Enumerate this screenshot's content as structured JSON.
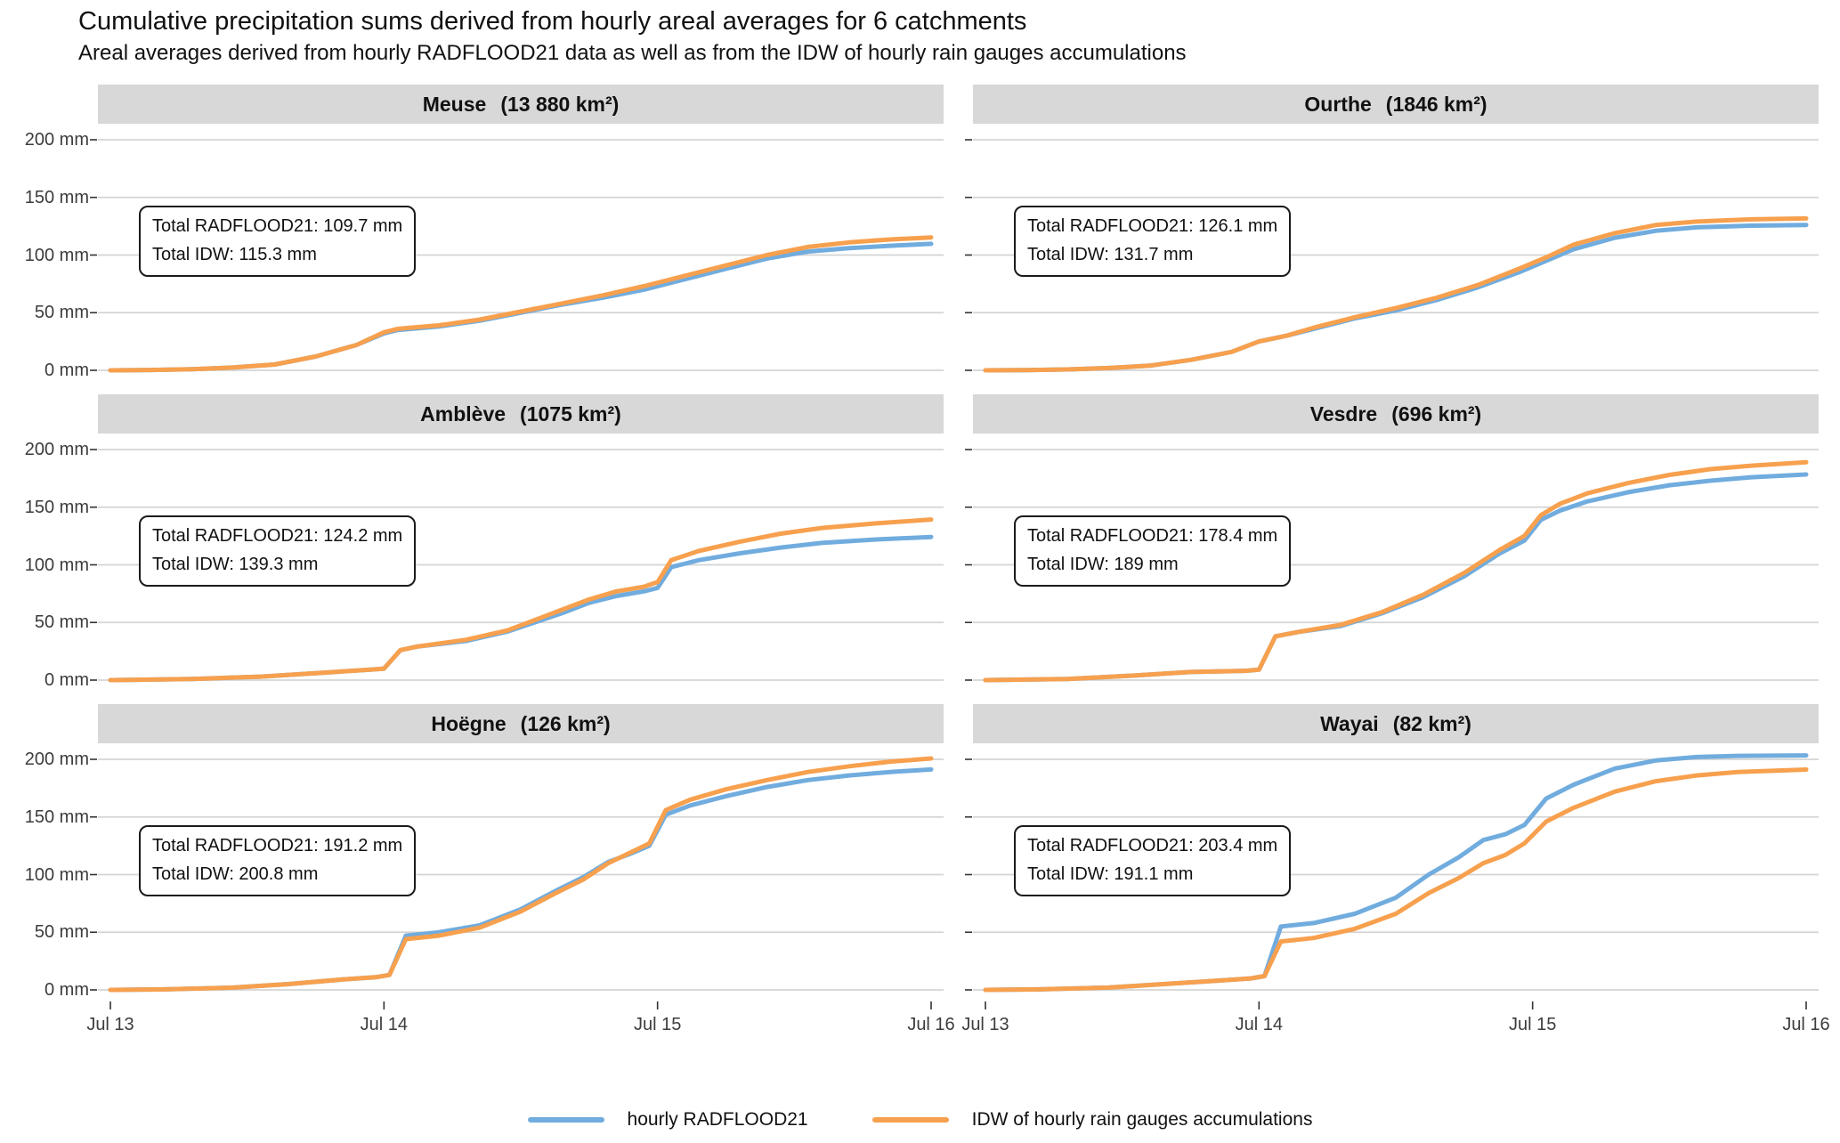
{
  "header": {
    "title": "Cumulative precipitation sums derived from hourly areal averages for 6 catchments",
    "subtitle": "Areal averages derived from hourly RADFLOOD21 data as well as from the IDW of hourly rain gauges accumulations"
  },
  "legend": {
    "radflood_label": "hourly RADFLOOD21",
    "idw_label": "IDW of hourly rain gauges accumulations"
  },
  "chart_data": {
    "type": "line",
    "layout": "facet-grid 3 rows x 2 cols, shared axes, horizontal major gridlines only, legend bottom",
    "x_axis": {
      "tick_labels": [
        "Jul 13",
        "Jul 14",
        "Jul 15",
        "Jul 16"
      ],
      "tick_positions_days": [
        0,
        1,
        2,
        3
      ],
      "range_days": [
        0,
        3
      ]
    },
    "y_axis": {
      "tick_values": [
        0,
        50,
        100,
        150,
        200
      ],
      "tick_labels": [
        "0 mm",
        "50 mm",
        "100 mm",
        "150 mm",
        "200 mm"
      ],
      "ylim": [
        0,
        200
      ]
    },
    "colors": {
      "radflood": "#71ACDE",
      "idw": "#F7A04E",
      "gridline": "#d4d4d4",
      "tick": "#333333",
      "strip_bg": "#d8d8d8"
    },
    "series_names": [
      "hourly RADFLOOD21",
      "IDW of hourly rain gauges accumulations"
    ],
    "panels": [
      {
        "name": "Meuse",
        "area_label": "(13 880 km²)",
        "total_radflood21_mm": 109.7,
        "total_idw_mm": 115.3,
        "annotation_line1": "Total RADFLOOD21: 109.7 mm",
        "annotation_line2": "Total IDW: 115.3 mm",
        "x": [
          0,
          0.15,
          0.3,
          0.45,
          0.6,
          0.75,
          0.9,
          1.0,
          1.05,
          1.2,
          1.35,
          1.5,
          1.65,
          1.8,
          1.95,
          2.1,
          2.25,
          2.4,
          2.55,
          2.7,
          2.85,
          3.0
        ],
        "radflood": [
          0,
          0.3,
          1,
          2.5,
          5,
          12,
          22,
          32,
          35,
          38,
          43,
          50,
          57,
          63,
          70,
          79,
          88,
          97,
          103,
          106,
          108,
          109.7
        ],
        "idw": [
          0,
          0.3,
          1,
          2.5,
          5,
          12,
          22,
          33,
          36,
          39,
          44,
          51,
          58,
          65,
          73,
          82,
          91,
          100,
          107,
          111,
          113.5,
          115.3
        ]
      },
      {
        "name": "Ourthe",
        "area_label": "(1846 km²)",
        "total_radflood21_mm": 126.1,
        "total_idw_mm": 131.7,
        "annotation_line1": "Total RADFLOOD21: 126.1 mm",
        "annotation_line2": "Total IDW: 131.7 mm",
        "x": [
          0,
          0.15,
          0.3,
          0.45,
          0.6,
          0.75,
          0.9,
          1.0,
          1.1,
          1.2,
          1.35,
          1.5,
          1.65,
          1.8,
          1.95,
          2.05,
          2.15,
          2.3,
          2.45,
          2.6,
          2.8,
          3.0
        ],
        "radflood": [
          0,
          0.2,
          0.8,
          2,
          4,
          9,
          16,
          25,
          30,
          36,
          45,
          52,
          61,
          72,
          85,
          95,
          105,
          115,
          121,
          124,
          125.5,
          126.1
        ],
        "idw": [
          0,
          0.2,
          0.8,
          2,
          4,
          9,
          16,
          25,
          30,
          37,
          46,
          54,
          63,
          74,
          88,
          98,
          109,
          119,
          126,
          129,
          131,
          131.7
        ]
      },
      {
        "name": "Amblève",
        "area_label": "(1075 km²)",
        "total_radflood21_mm": 124.2,
        "total_idw_mm": 139.3,
        "annotation_line1": "Total RADFLOOD21: 124.2 mm",
        "annotation_line2": "Total IDW: 139.3 mm",
        "x": [
          0,
          0.3,
          0.55,
          0.75,
          0.95,
          1.0,
          1.06,
          1.12,
          1.3,
          1.45,
          1.55,
          1.65,
          1.75,
          1.85,
          1.95,
          2.0,
          2.05,
          2.15,
          2.3,
          2.45,
          2.6,
          2.8,
          3.0
        ],
        "radflood": [
          0,
          1,
          3,
          6,
          9,
          10,
          26,
          29,
          34,
          42,
          50,
          58,
          67,
          73,
          77,
          80,
          98,
          104,
          110,
          115,
          119,
          122,
          124.2
        ],
        "idw": [
          0,
          1,
          3,
          6,
          9,
          10,
          26,
          29,
          35,
          43,
          52,
          61,
          70,
          77,
          81,
          85,
          104,
          112,
          120,
          127,
          132,
          136,
          139.3
        ]
      },
      {
        "name": "Vesdre",
        "area_label": "(696 km²)",
        "total_radflood21_mm": 178.4,
        "total_idw_mm": 189,
        "annotation_line1": "Total RADFLOOD21: 178.4 mm",
        "annotation_line2": "Total IDW: 189 mm",
        "x": [
          0,
          0.3,
          0.55,
          0.75,
          0.95,
          1.0,
          1.06,
          1.15,
          1.3,
          1.45,
          1.6,
          1.75,
          1.88,
          1.97,
          2.03,
          2.1,
          2.2,
          2.35,
          2.5,
          2.65,
          2.8,
          3.0
        ],
        "radflood": [
          0,
          1,
          4,
          7,
          8,
          9,
          38,
          42,
          47,
          58,
          72,
          90,
          110,
          121,
          139,
          147,
          155,
          163,
          169,
          173,
          176,
          178.4
        ],
        "idw": [
          0,
          1,
          4,
          7,
          8,
          9,
          38,
          42,
          48,
          59,
          74,
          93,
          113,
          125,
          143,
          153,
          162,
          171,
          178,
          183,
          186,
          189
        ]
      },
      {
        "name": "Hoëgne",
        "area_label": "(126 km²)",
        "total_radflood21_mm": 191.2,
        "total_idw_mm": 200.8,
        "annotation_line1": "Total RADFLOOD21: 191.2 mm",
        "annotation_line2": "Total IDW: 200.8 mm",
        "x": [
          0,
          0.2,
          0.45,
          0.65,
          0.85,
          0.97,
          1.02,
          1.08,
          1.2,
          1.35,
          1.5,
          1.62,
          1.73,
          1.82,
          1.9,
          1.97,
          2.03,
          2.12,
          2.25,
          2.4,
          2.55,
          2.7,
          2.85,
          3.0
        ],
        "radflood": [
          0,
          0.5,
          2,
          5,
          9,
          11,
          13,
          47,
          50,
          56,
          70,
          85,
          98,
          111,
          118,
          125,
          152,
          160,
          168,
          176,
          182,
          186,
          189,
          191.2
        ],
        "idw": [
          0,
          0.5,
          2,
          5,
          9,
          11,
          13,
          44,
          47,
          54,
          68,
          83,
          96,
          110,
          119,
          127,
          156,
          165,
          174,
          182,
          189,
          194,
          198,
          200.8
        ]
      },
      {
        "name": "Wayai",
        "area_label": "(82 km²)",
        "total_radflood21_mm": 203.4,
        "total_idw_mm": 191.1,
        "annotation_line1": "Total RADFLOOD21: 203.4 mm",
        "annotation_line2": "Total IDW: 191.1 mm",
        "x": [
          0,
          0.2,
          0.45,
          0.65,
          0.85,
          0.97,
          1.02,
          1.08,
          1.2,
          1.35,
          1.5,
          1.62,
          1.73,
          1.82,
          1.9,
          1.97,
          2.05,
          2.15,
          2.3,
          2.45,
          2.6,
          2.75,
          3.0
        ],
        "radflood": [
          0,
          0.5,
          2,
          5,
          8,
          10,
          12,
          55,
          58,
          66,
          80,
          100,
          115,
          130,
          135,
          143,
          166,
          178,
          192,
          199,
          202,
          203,
          203.4
        ],
        "idw": [
          0,
          0.5,
          2,
          5,
          8,
          10,
          12,
          42,
          45,
          53,
          66,
          84,
          97,
          110,
          117,
          127,
          146,
          158,
          172,
          181,
          186,
          189,
          191.1
        ]
      }
    ]
  }
}
